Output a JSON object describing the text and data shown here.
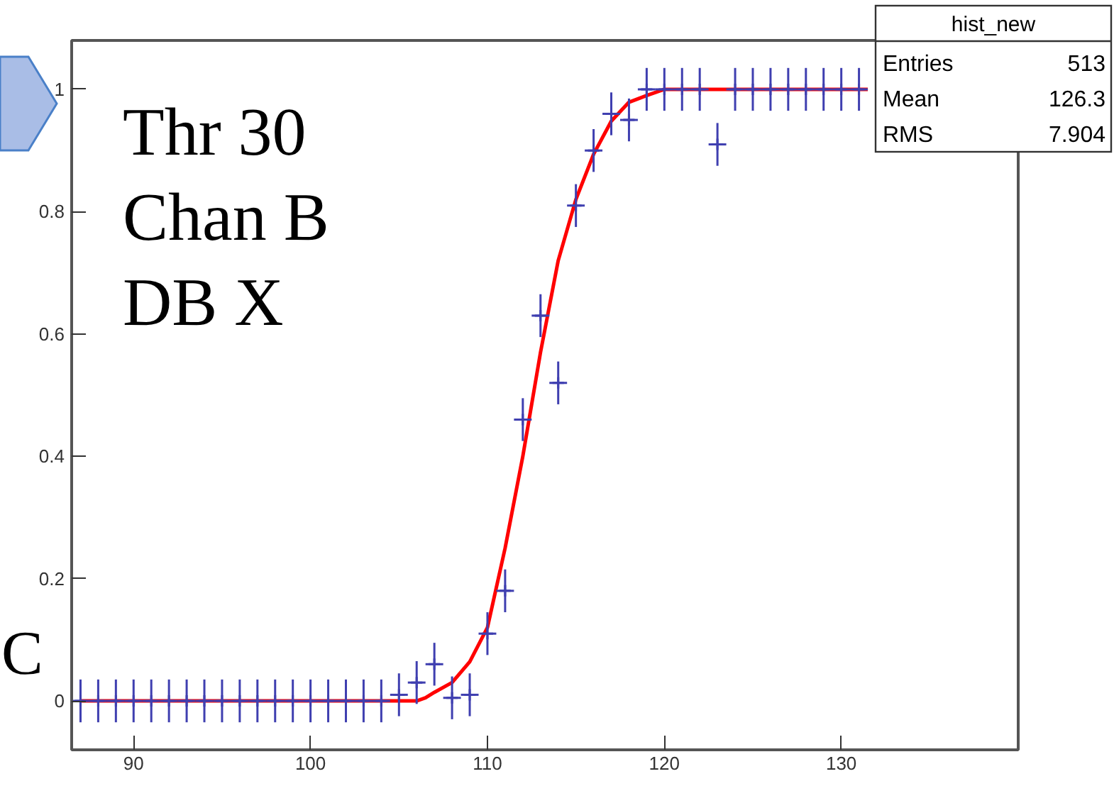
{
  "chart_data": {
    "type": "scatter",
    "annotations": [
      "Thr 30",
      "Chan B",
      "DB X",
      "C",
      "hist_new",
      "Entries 513",
      "Mean 126.3",
      "RMS 7.904"
    ],
    "xlim": [
      86.5,
      140
    ],
    "ylim": [
      -0.08,
      1.08
    ],
    "xticks": [
      90,
      100,
      110,
      120,
      130
    ],
    "yticks": [
      0,
      0.2,
      0.4,
      0.6,
      0.8,
      1
    ],
    "grid": false,
    "series": [
      {
        "color": "#3f3fb0",
        "marker": "cross",
        "x": [
          87,
          88,
          89,
          90,
          91,
          92,
          93,
          94,
          95,
          96,
          97,
          98,
          99,
          100,
          101,
          102,
          103,
          104,
          105,
          106,
          107,
          108,
          109,
          110,
          111,
          112,
          113,
          114,
          115,
          116,
          117,
          118,
          119,
          120,
          121,
          122,
          123,
          124,
          125,
          126,
          127,
          128,
          129,
          130,
          131
        ],
        "values": [
          0,
          0,
          0,
          0,
          0,
          0,
          0,
          0,
          0,
          0,
          0,
          0,
          0,
          0,
          0,
          0,
          0,
          0,
          0.01,
          0.03,
          0.06,
          0.005,
          0.01,
          0.11,
          0.18,
          0.46,
          0.63,
          0.52,
          0.81,
          0.9,
          0.96,
          0.95,
          1,
          1,
          1,
          1,
          0.91,
          1,
          1,
          1,
          1,
          1,
          1,
          1,
          1
        ],
        "errors": [
          0.035,
          0.035,
          0.035,
          0.035,
          0.035,
          0.035,
          0.035,
          0.035,
          0.035,
          0.035,
          0.035,
          0.035,
          0.035,
          0.035,
          0.035,
          0.035,
          0.035,
          0.035,
          0.035,
          0.035,
          0.035,
          0.035,
          0.035,
          0.035,
          0.035,
          0.035,
          0.035,
          0.035,
          0.035,
          0.035,
          0.035,
          0.035,
          0.035,
          0.035,
          0.035,
          0.035,
          0.035,
          0.035,
          0.035,
          0.035,
          0.035,
          0.035,
          0.035,
          0.035,
          0.035
        ],
        "xerrors": [
          0.5,
          0.5,
          0.5,
          0.5,
          0.5,
          0.5,
          0.5,
          0.5,
          0.5,
          0.5,
          0.5,
          0.5,
          0.5,
          0.5,
          0.5,
          0.5,
          0.5,
          0.5,
          0.5,
          0.5,
          0.5,
          0.5,
          0.5,
          0.5,
          0.5,
          0.5,
          0.5,
          0.5,
          0.5,
          0.5,
          0.5,
          0.5,
          0.5,
          0.5,
          0.5,
          0.5,
          0.5,
          0.5,
          0.5,
          0.5,
          0.5,
          0.5,
          0.5,
          0.5,
          0.5
        ]
      },
      {
        "type": "line",
        "color": "#ff0000",
        "x": [
          87,
          106,
          106.5,
          107,
          108,
          109,
          110,
          111,
          112,
          113,
          114,
          115,
          116,
          117,
          118,
          119,
          120,
          131.5
        ],
        "values": [
          0,
          0,
          0.005,
          0.014,
          0.03,
          0.064,
          0.12,
          0.25,
          0.4,
          0.57,
          0.72,
          0.82,
          0.894,
          0.948,
          0.979,
          0.99,
          1,
          1
        ]
      }
    ]
  }
}
